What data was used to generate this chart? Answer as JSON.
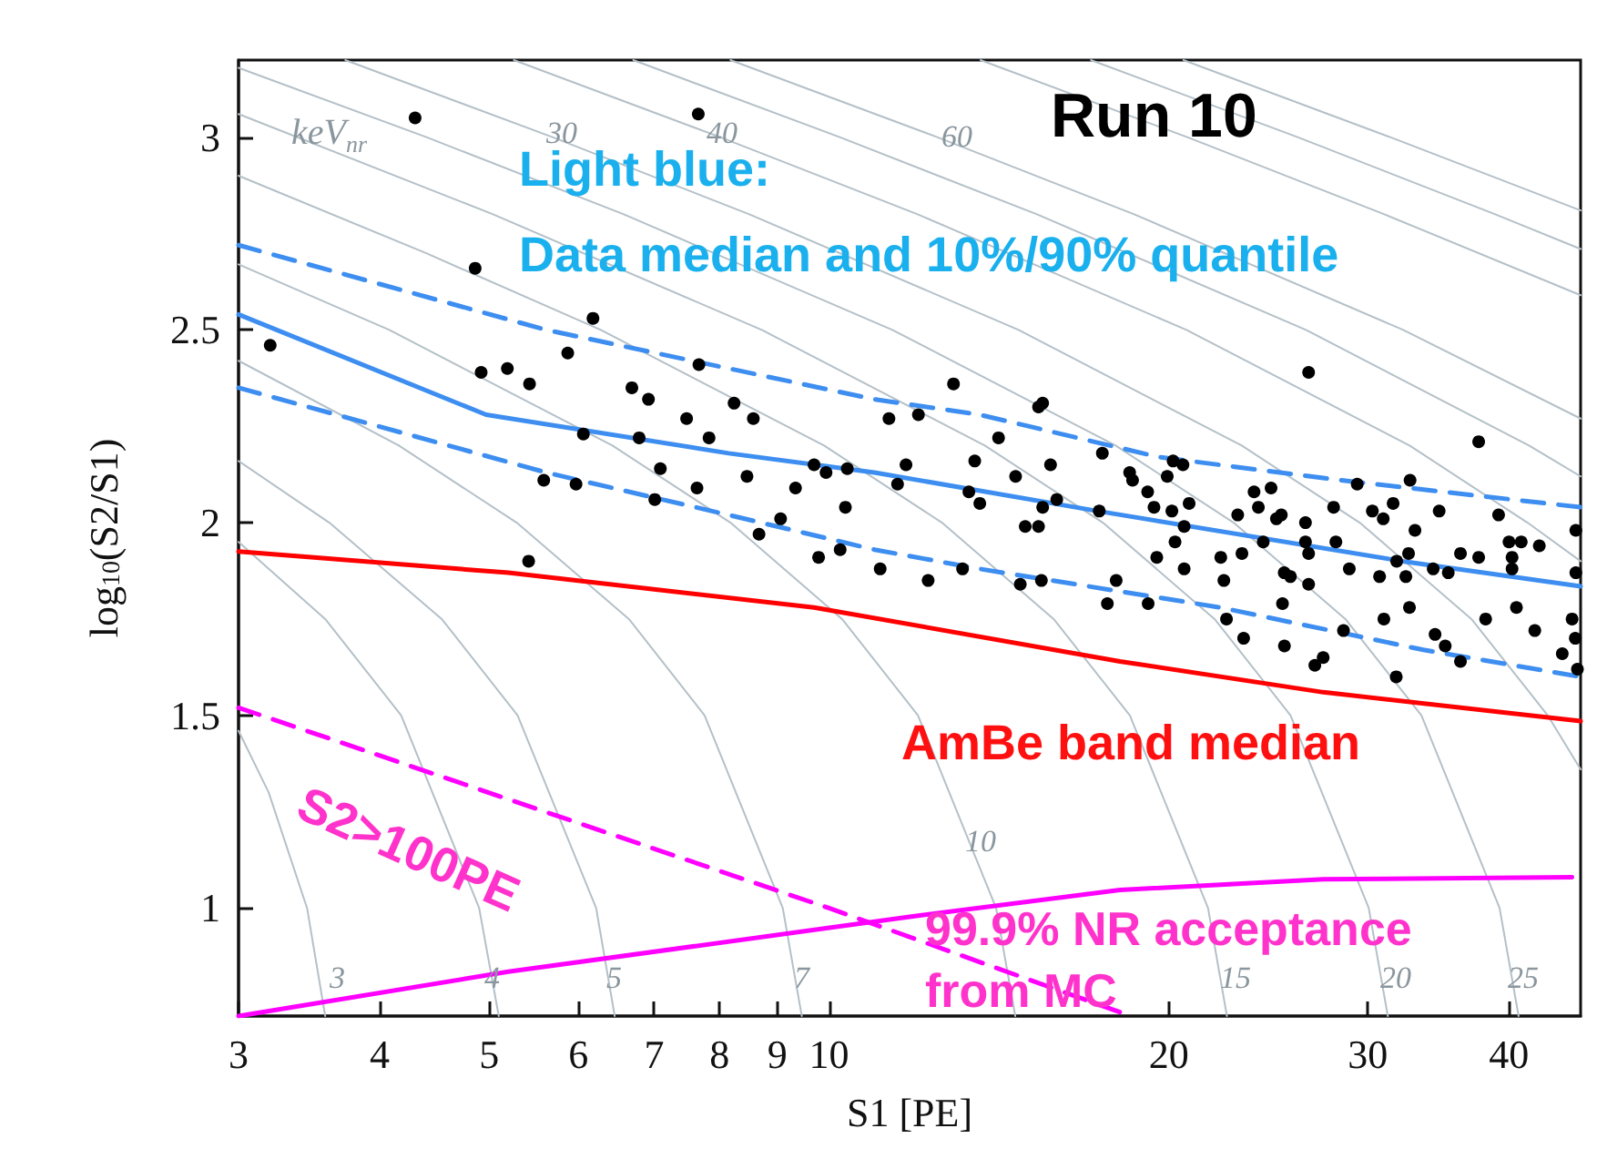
{
  "chart_data": {
    "type": "scatter",
    "title": "Run 10",
    "xlabel": "S1 [PE]",
    "ylabel": "log$_{10}$(S2/S1)",
    "log": "x",
    "grid": false,
    "xlim": [
      3,
      46.3
    ],
    "ylim": [
      0.72,
      3.2
    ],
    "xticks": [
      3,
      4,
      5,
      6,
      7,
      8,
      9,
      10,
      20,
      30,
      40
    ],
    "yticks": [
      1,
      1.5,
      2,
      2.5,
      3
    ],
    "series": [
      {
        "type": "line",
        "color": "#b4c0c8",
        "marker": "none",
        "x": [
          3,
          3.19,
          3.45,
          3.58
        ],
        "values": [
          1.46,
          1.3,
          1.0,
          0.72
        ]
      },
      {
        "type": "line",
        "color": "#b4c0c8",
        "marker": "none",
        "x": [
          3,
          3.58,
          4.18,
          4.9,
          5.1
        ],
        "values": [
          1.95,
          1.75,
          1.5,
          1.0,
          0.72
        ]
      },
      {
        "type": "line",
        "color": "#b4c0c8",
        "marker": "none",
        "x": [
          3,
          3.61,
          4.54,
          5.3,
          6.22,
          6.46
        ],
        "values": [
          2.16,
          2.0,
          1.75,
          1.5,
          1.0,
          0.72
        ]
      },
      {
        "type": "line",
        "color": "#b4c0c8",
        "marker": "none",
        "x": [
          3,
          4.16,
          5.29,
          6.65,
          7.76,
          9.1,
          9.46
        ],
        "values": [
          2.42,
          2.2,
          2.0,
          1.75,
          1.5,
          1.0,
          0.72
        ]
      },
      {
        "type": "line",
        "color": "#b4c0c8",
        "marker": "none",
        "x": [
          3,
          4.08,
          6.43,
          8.18,
          10.27,
          11.99,
          14.06,
          14.62
        ],
        "values": [
          2.67,
          2.5,
          2.2,
          2.0,
          1.75,
          1.5,
          1.0,
          0.72
        ]
      },
      {
        "type": "line",
        "color": "#b4c0c8",
        "marker": "none",
        "x": [
          3,
          4.39,
          6.28,
          9.9,
          12.59,
          15.81,
          18.47,
          21.66,
          22.51
        ],
        "values": [
          2.9,
          2.7,
          2.5,
          2.2,
          2.0,
          1.75,
          1.5,
          1.0,
          0.72
        ]
      },
      {
        "type": "line",
        "color": "#b4c0c8",
        "marker": "none",
        "x": [
          3,
          5.04,
          8.72,
          13.74,
          17.48,
          21.95,
          25.63,
          30.06,
          31.25
        ],
        "values": [
          3.06,
          2.8,
          2.5,
          2.2,
          2.0,
          1.75,
          1.5,
          1.0,
          0.72
        ]
      },
      {
        "type": "line",
        "color": "#b4c0c8",
        "marker": "none",
        "x": [
          3,
          4.4,
          6.58,
          11.38,
          17.94,
          22.82,
          28.66,
          33.47,
          39.25,
          40.8
        ],
        "values": [
          3.18,
          3.0,
          2.8,
          2.5,
          2.2,
          2.0,
          1.75,
          1.5,
          1.0,
          0.72
        ]
      },
      {
        "type": "line",
        "color": "#b4c0c8",
        "marker": "none",
        "x": [
          3.73,
          5.69,
          8.5,
          14.72,
          23.2,
          29.51,
          37.06,
          43.3,
          46.3
        ],
        "values": [
          3.2,
          3.0,
          2.8,
          2.5,
          2.2,
          2.0,
          1.75,
          1.5,
          1.36
        ]
      },
      {
        "type": "line",
        "color": "#b4c0c8",
        "marker": "none",
        "x": [
          5.26,
          8.01,
          11.98,
          20.73,
          32.67,
          41.55,
          46.3
        ],
        "values": [
          3.2,
          3.0,
          2.8,
          2.5,
          2.2,
          2.0,
          1.9
        ]
      },
      {
        "type": "line",
        "color": "#b4c0c8",
        "marker": "none",
        "x": [
          6.71,
          10.22,
          15.28,
          26.45,
          41.68,
          46.3
        ],
        "values": [
          3.2,
          3.0,
          2.8,
          2.5,
          2.2,
          2.12
        ]
      },
      {
        "type": "line",
        "color": "#b4c0c8",
        "marker": "none",
        "x": [
          8.18,
          12.47,
          18.63,
          32.25,
          46.3
        ],
        "values": [
          3.2,
          3.0,
          2.8,
          2.5,
          2.27
        ]
      },
      {
        "type": "line",
        "color": "#b4c0c8",
        "marker": "none",
        "x": [
          13.62,
          20.76,
          31.03,
          46.3
        ],
        "values": [
          3.2,
          3.0,
          2.8,
          2.59
        ]
      },
      {
        "type": "line",
        "color": "#b4c0c8",
        "marker": "none",
        "x": [
          17.06,
          26.0,
          38.9,
          46.3
        ],
        "values": [
          3.2,
          3.0,
          2.8,
          2.71
        ]
      },
      {
        "type": "line",
        "color": "#b4c0c8",
        "marker": "none",
        "x": [
          20.6,
          31.4,
          46.3
        ],
        "values": [
          3.2,
          3.0,
          2.81
        ]
      },
      {
        "type": "line",
        "color": "#ff00ff",
        "marker": "none",
        "line_style": "dashed",
        "x": [
          3,
          10,
          18.5
        ],
        "values": [
          1.52,
          1.0,
          0.72
        ]
      },
      {
        "type": "line",
        "color": "#ff00ff",
        "marker": "none",
        "x": [
          3,
          5.2,
          11.95,
          18.1,
          27.4,
          45.5
        ],
        "values": [
          0.72,
          0.835,
          0.98,
          1.047,
          1.075,
          1.08
        ]
      },
      {
        "type": "line",
        "color": "#ff0000",
        "marker": "none",
        "x": [
          3,
          5.2,
          9.7,
          18.1,
          27.4,
          46.3
        ],
        "values": [
          1.925,
          1.87,
          1.78,
          1.64,
          1.56,
          1.485
        ]
      },
      {
        "type": "line",
        "color": "#3d8ef0",
        "marker": "none",
        "x": [
          3,
          4.97,
          8.15,
          10.97,
          17.3,
          32.2,
          46.3
        ],
        "values": [
          2.54,
          2.28,
          2.18,
          2.13,
          2.03,
          1.9,
          1.835
        ]
      },
      {
        "type": "line",
        "color": "#3d8ef0",
        "marker": "none",
        "line_style": "dashed",
        "x": [
          3,
          5.62,
          8.15,
          10.97,
          13.6,
          19.6,
          28.4,
          46.3
        ],
        "values": [
          2.72,
          2.5,
          2.4,
          2.32,
          2.28,
          2.17,
          2.11,
          2.04
        ]
      },
      {
        "type": "line",
        "color": "#3d8ef0",
        "marker": "none",
        "line_style": "dashed",
        "x": [
          3,
          5.62,
          8.15,
          10.97,
          13.6,
          22.2,
          33.6,
          46.3
        ],
        "values": [
          2.35,
          2.13,
          2.02,
          1.93,
          1.88,
          1.78,
          1.67,
          1.6
        ]
      },
      {
        "color": "#000000",
        "marker": "circle",
        "x": [
          3.2,
          4.3,
          4.86,
          4.92,
          5.19,
          5.43,
          5.42,
          5.59,
          5.87,
          5.97,
          6.06,
          6.18,
          6.69,
          6.79,
          6.92,
          7.01,
          7.09,
          7.48,
          7.64,
          7.66,
          7.67,
          7.83,
          8.24,
          8.46,
          8.57,
          8.67,
          9.06,
          9.34,
          9.7,
          9.79,
          9.94,
          10.23,
          10.34,
          10.38,
          11.1,
          11.3,
          11.5,
          11.7,
          12.0,
          12.24,
          12.89,
          13.13,
          13.3,
          13.46,
          13.6,
          14.13,
          14.63,
          14.77,
          14.92,
          15.33,
          15.46,
          15.33,
          15.42,
          15.46,
          15.71,
          15.91,
          17.35,
          17.46,
          17.96,
          18.46,
          18.57,
          19.15,
          19.4,
          19.51,
          19.93,
          20.12,
          20.17,
          20.25,
          20.58,
          20.63,
          20.63,
          20.84,
          22.23,
          22.37,
          23.01,
          23.21,
          23.79,
          24.0,
          24.24,
          24.63,
          24.9,
          25.15,
          25.3,
          25.62,
          26.42,
          26.42,
          26.59,
          26.59,
          26.59,
          27.98,
          28.11,
          28.89,
          29.36,
          30.28,
          30.73,
          30.96,
          31.59,
          31.82,
          32.42,
          32.7,
          32.6,
          33.03,
          34.28,
          34.7,
          35.35,
          36.24,
          37.61,
          37.61,
          39.17,
          40.01,
          40.26,
          40.26,
          41.02,
          42.56,
          45.85,
          45.85,
          17.64,
          19.17,
          22.49,
          23.29,
          25.21,
          25.31,
          26.93,
          27.39,
          28.55,
          31.0,
          31.79,
          32.66,
          34.41,
          35.13,
          36.24,
          38.15,
          40.62,
          42.17,
          44.6,
          45.5,
          45.8,
          46.0
        ],
        "values": [
          2.46,
          3.05,
          2.66,
          2.39,
          2.4,
          2.36,
          1.9,
          2.11,
          2.44,
          2.1,
          2.23,
          2.53,
          2.35,
          2.22,
          2.32,
          2.06,
          2.14,
          2.27,
          2.09,
          3.06,
          2.41,
          2.22,
          2.31,
          2.12,
          2.27,
          1.97,
          2.01,
          2.09,
          2.15,
          1.91,
          2.13,
          1.93,
          2.04,
          2.14,
          1.88,
          2.27,
          2.1,
          2.15,
          2.28,
          1.85,
          2.36,
          1.88,
          2.08,
          2.16,
          2.05,
          2.22,
          2.12,
          1.84,
          1.99,
          2.3,
          2.31,
          1.99,
          1.85,
          2.04,
          2.15,
          2.06,
          2.03,
          2.18,
          1.85,
          2.13,
          2.11,
          2.08,
          2.04,
          1.91,
          2.12,
          2.03,
          2.16,
          1.95,
          2.15,
          1.99,
          1.88,
          2.05,
          1.91,
          1.85,
          2.02,
          1.92,
          2.08,
          2.04,
          1.95,
          2.09,
          2.01,
          2.02,
          1.87,
          1.86,
          2.0,
          1.95,
          1.84,
          1.92,
          2.39,
          2.04,
          1.95,
          1.88,
          2.1,
          2.03,
          1.86,
          2.01,
          2.05,
          1.9,
          1.86,
          2.11,
          1.92,
          1.98,
          1.88,
          2.03,
          1.87,
          1.92,
          2.21,
          1.91,
          2.02,
          1.95,
          1.91,
          1.88,
          1.95,
          1.94,
          1.98,
          1.87,
          1.79,
          1.79,
          1.75,
          1.7,
          1.79,
          1.68,
          1.63,
          1.65,
          1.72,
          1.75,
          1.6,
          1.78,
          1.71,
          1.68,
          1.64,
          1.75,
          1.78,
          1.72,
          1.66,
          1.75,
          1.7,
          1.62
        ]
      }
    ],
    "annotations": [
      "keV$_{nr}$",
      "3",
      "4",
      "5",
      "7",
      "10",
      "15",
      "20",
      "25",
      "30",
      "40",
      "60",
      "Light blue:",
      "Data median and 10%/90% quantile",
      "AmBe band median",
      "S2>100PE",
      "99.9% NR acceptance from MC"
    ]
  }
}
